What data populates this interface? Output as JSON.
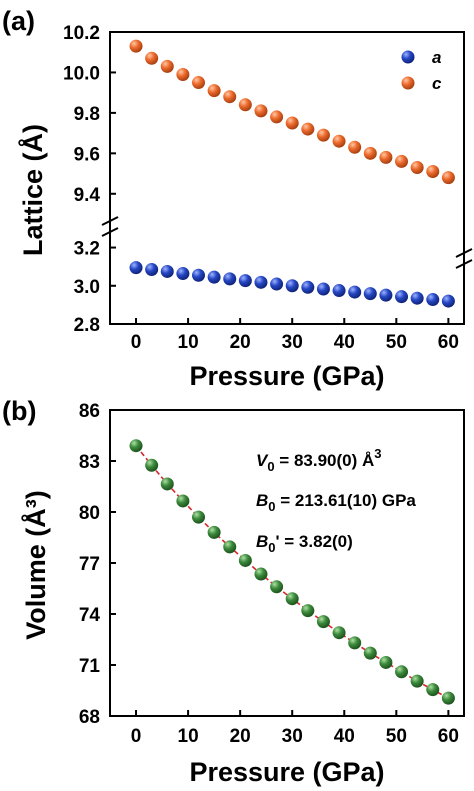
{
  "colors": {
    "series_a": "#2547c4",
    "series_c": "#ec6a2c",
    "volume_points": "#3c8a3c",
    "fit_line": "#d9262a"
  },
  "chart_data": [
    {
      "type": "scatter",
      "panel_label": "(a)",
      "xlabel": "Pressure (GPa)",
      "ylabel": "Lattice (Å)",
      "xlim": [
        -5,
        63
      ],
      "x_ticks": [
        0,
        10,
        20,
        30,
        40,
        50,
        60
      ],
      "axis_break": true,
      "ylim_lower": [
        2.8,
        3.25
      ],
      "ylim_upper": [
        9.3,
        10.2
      ],
      "y_ticks_lower": [
        "2.8",
        "3.0",
        "3.2"
      ],
      "y_ticks_upper": [
        "9.4",
        "9.6",
        "9.8",
        "10.0",
        "10.2"
      ],
      "legend_position": "top-right",
      "series": [
        {
          "name": "a",
          "color": "#2547c4",
          "x": [
            0,
            3,
            6,
            9,
            12,
            15,
            18,
            21,
            24,
            27,
            30,
            33,
            36,
            39,
            42,
            45,
            48,
            51,
            54,
            57,
            60
          ],
          "y": [
            3.095,
            3.085,
            3.075,
            3.064,
            3.055,
            3.045,
            3.036,
            3.027,
            3.018,
            3.009,
            3.0,
            2.992,
            2.983,
            2.975,
            2.967,
            2.959,
            2.951,
            2.943,
            2.935,
            2.928,
            2.92
          ]
        },
        {
          "name": "c",
          "color": "#ec6a2c",
          "x": [
            0,
            3,
            6,
            9,
            12,
            15,
            18,
            21,
            24,
            27,
            30,
            33,
            36,
            39,
            42,
            45,
            48,
            51,
            54,
            57,
            60
          ],
          "y": [
            10.13,
            10.07,
            10.03,
            9.99,
            9.95,
            9.91,
            9.88,
            9.84,
            9.81,
            9.78,
            9.75,
            9.72,
            9.69,
            9.66,
            9.63,
            9.6,
            9.58,
            9.56,
            9.53,
            9.51,
            9.48
          ]
        }
      ]
    },
    {
      "type": "scatter",
      "panel_label": "(b)",
      "xlabel": "Pressure (GPa)",
      "ylabel": "Volume (Å³)",
      "xlim": [
        -5,
        63
      ],
      "ylim": [
        68,
        86
      ],
      "x_ticks": [
        0,
        10,
        20,
        30,
        40,
        50,
        60
      ],
      "y_ticks": [
        68,
        71,
        74,
        77,
        80,
        83,
        86
      ],
      "annotations": [
        {
          "sym": "V",
          "sub": "0",
          "text": " = 83.90(0) Å",
          "sup": "3"
        },
        {
          "sym": "B",
          "sub": "0",
          "text": " = 213.61(10) GPa",
          "sup": ""
        },
        {
          "sym": "B",
          "sub": "0",
          "text": "' = 3.82(0)",
          "sup": ""
        }
      ],
      "series": [
        {
          "name": "",
          "color": "#3c8a3c",
          "x": [
            0,
            3,
            6,
            9,
            12,
            15,
            18,
            21,
            24,
            27,
            30,
            33,
            36,
            39,
            42,
            45,
            48,
            51,
            54,
            57,
            60
          ],
          "y": [
            83.9,
            82.75,
            81.65,
            80.65,
            79.7,
            78.8,
            77.95,
            77.15,
            76.35,
            75.6,
            74.9,
            74.2,
            73.55,
            72.9,
            72.3,
            71.7,
            71.15,
            70.6,
            70.05,
            69.55,
            69.05
          ]
        }
      ],
      "fit": {
        "x": [
          0,
          3,
          6,
          9,
          12,
          15,
          18,
          21,
          24,
          27,
          30,
          33,
          36,
          39,
          42,
          45,
          48,
          51,
          54,
          57,
          60
        ],
        "y": [
          83.9,
          82.75,
          81.65,
          80.65,
          79.7,
          78.8,
          77.95,
          77.15,
          76.35,
          75.6,
          74.9,
          74.2,
          73.55,
          72.9,
          72.3,
          71.7,
          71.15,
          70.6,
          70.05,
          69.55,
          69.05
        ]
      }
    }
  ]
}
